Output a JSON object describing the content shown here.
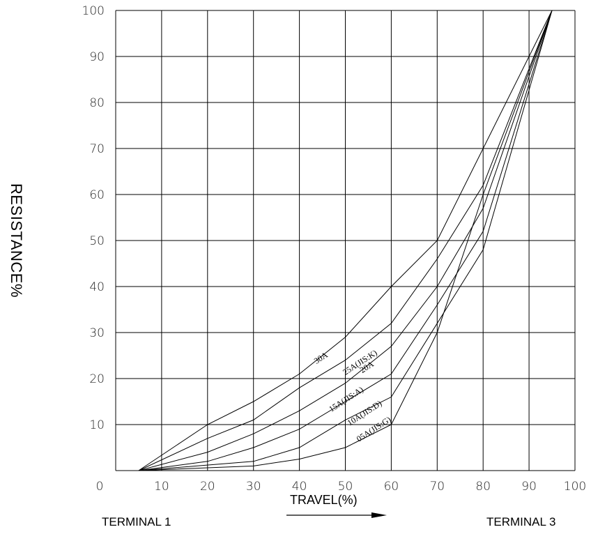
{
  "chart_data": {
    "type": "line",
    "xlabel": "TRAVEL(%)",
    "ylabel": "RESISTANCE%",
    "xlim": [
      0,
      100
    ],
    "ylim": [
      0,
      100
    ],
    "grid": true,
    "x_ticks": [
      "0",
      "10",
      "20",
      "30",
      "40",
      "50",
      "60",
      "70",
      "80",
      "90",
      "100"
    ],
    "y_ticks": [
      "10",
      "20",
      "30",
      "40",
      "50",
      "60",
      "70",
      "80",
      "90",
      "100"
    ],
    "terminal_left": "TERMINAL 1",
    "terminal_right": "TERMINAL 3",
    "series": [
      {
        "name": "30A",
        "label_pos": [
          45,
          24
        ],
        "points": [
          [
            5,
            0
          ],
          [
            20,
            10
          ],
          [
            30,
            15
          ],
          [
            40,
            21
          ],
          [
            50,
            29
          ],
          [
            60,
            40
          ],
          [
            70,
            50
          ],
          [
            80,
            70
          ],
          [
            95,
            100
          ]
        ]
      },
      {
        "name": "25A(JIS:K)",
        "label_pos": [
          53.5,
          23
        ],
        "points": [
          [
            5,
            0
          ],
          [
            20,
            7
          ],
          [
            30,
            11
          ],
          [
            40,
            18
          ],
          [
            50,
            24
          ],
          [
            60,
            32
          ],
          [
            70,
            46
          ],
          [
            80,
            62
          ],
          [
            95,
            100
          ]
        ]
      },
      {
        "name": "20A",
        "label_pos": [
          55,
          22
        ],
        "points": [
          [
            5,
            0
          ],
          [
            20,
            4
          ],
          [
            30,
            8
          ],
          [
            40,
            13
          ],
          [
            50,
            19
          ],
          [
            60,
            27
          ],
          [
            70,
            40
          ],
          [
            80,
            57
          ],
          [
            95,
            100
          ]
        ]
      },
      {
        "name": "15A(JIS:A)",
        "label_pos": [
          50.5,
          15
        ],
        "points": [
          [
            5,
            0
          ],
          [
            20,
            2
          ],
          [
            30,
            5
          ],
          [
            40,
            9
          ],
          [
            50,
            15
          ],
          [
            60,
            21
          ],
          [
            70,
            36
          ],
          [
            80,
            52
          ],
          [
            95,
            100
          ]
        ]
      },
      {
        "name": "10A(JIS:D)",
        "label_pos": [
          54.5,
          12
        ],
        "points": [
          [
            5,
            0
          ],
          [
            30,
            2
          ],
          [
            40,
            5
          ],
          [
            50,
            11
          ],
          [
            60,
            16
          ],
          [
            70,
            32
          ],
          [
            80,
            48
          ],
          [
            95,
            100
          ]
        ]
      },
      {
        "name": "05A(JIS:G)",
        "label_pos": [
          56.5,
          8.5
        ],
        "points": [
          [
            5,
            0
          ],
          [
            30,
            1
          ],
          [
            40,
            2.5
          ],
          [
            50,
            5
          ],
          [
            60,
            10
          ],
          [
            65,
            20
          ],
          [
            70,
            30
          ],
          [
            80,
            60
          ],
          [
            95,
            100
          ]
        ]
      }
    ]
  }
}
